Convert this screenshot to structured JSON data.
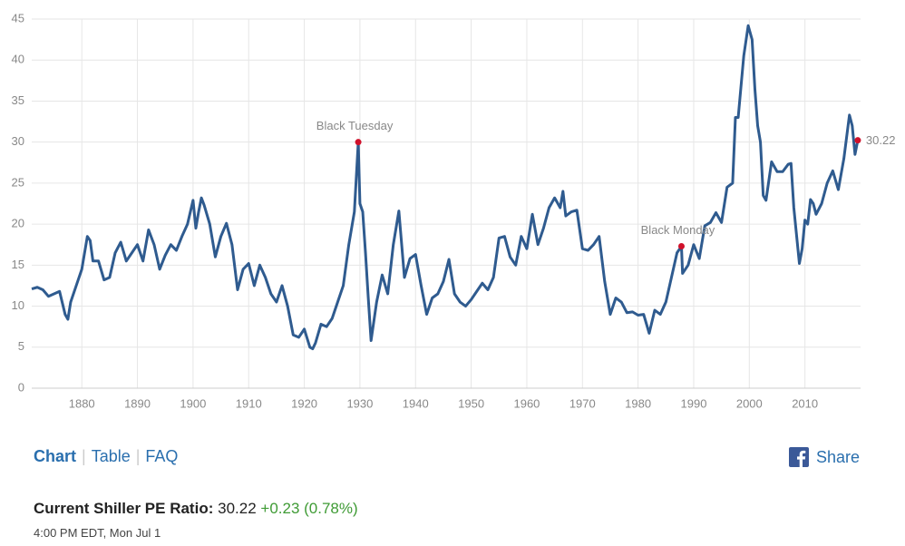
{
  "chart_data": {
    "type": "line",
    "x": [
      1871,
      1872,
      1873,
      1874,
      1875,
      1876,
      1877,
      1877.5,
      1878,
      1879,
      1880,
      1881,
      1881.5,
      1882,
      1883,
      1884,
      1885,
      1886,
      1887,
      1888,
      1889,
      1890,
      1891,
      1892,
      1893,
      1894,
      1895,
      1896,
      1897,
      1898,
      1899,
      1900,
      1900.5,
      1901,
      1901.5,
      1902,
      1903,
      1904,
      1905,
      1906,
      1907,
      1908,
      1909,
      1910,
      1911,
      1912,
      1913,
      1914,
      1915,
      1916,
      1917,
      1918,
      1919,
      1920,
      1921,
      1921.5,
      1922,
      1923,
      1924,
      1925,
      1926,
      1927,
      1928,
      1929,
      1929.7,
      1930,
      1930.5,
      1931,
      1931.5,
      1932,
      1933,
      1934,
      1935,
      1936,
      1937,
      1938,
      1939,
      1940,
      1941,
      1942,
      1943,
      1944,
      1945,
      1946,
      1947,
      1948,
      1949,
      1950,
      1951,
      1952,
      1953,
      1954,
      1955,
      1956,
      1957,
      1958,
      1959,
      1960,
      1961,
      1962,
      1963,
      1964,
      1965,
      1966,
      1966.5,
      1967,
      1968,
      1969,
      1970,
      1971,
      1972,
      1973,
      1974,
      1975,
      1976,
      1977,
      1978,
      1979,
      1980,
      1981,
      1982,
      1983,
      1984,
      1985,
      1986,
      1987,
      1987.8,
      1988,
      1989,
      1990,
      1991,
      1992,
      1993,
      1994,
      1995,
      1996,
      1997,
      1997.5,
      1998,
      1999,
      1999.8,
      2000.5,
      2001,
      2001.5,
      2002,
      2002.5,
      2003,
      2004,
      2005,
      2006,
      2007,
      2007.5,
      2008,
      2009,
      2009.5,
      2010,
      2010.5,
      2011,
      2011.5,
      2012,
      2013,
      2014,
      2015,
      2016,
      2017,
      2018,
      2018.5,
      2019,
      2019.5
    ],
    "series": [
      {
        "color": "#2f5b8f",
        "values": [
          12.1,
          12.3,
          12.0,
          11.2,
          11.5,
          11.8,
          9.0,
          8.4,
          10.5,
          12.5,
          14.5,
          18.5,
          18.0,
          15.5,
          15.5,
          13.2,
          13.5,
          16.5,
          17.8,
          15.5,
          16.5,
          17.5,
          15.5,
          19.3,
          17.5,
          14.5,
          16.2,
          17.5,
          16.8,
          18.5,
          20.0,
          22.9,
          19.5,
          21.5,
          23.2,
          22.3,
          20.0,
          16.0,
          18.5,
          20.1,
          17.5,
          12.0,
          14.5,
          15.2,
          12.5,
          15.0,
          13.5,
          11.5,
          10.5,
          12.5,
          10.0,
          6.5,
          6.2,
          7.2,
          5.0,
          4.8,
          5.5,
          7.8,
          7.5,
          8.5,
          10.5,
          12.5,
          17.5,
          21.5,
          30.0,
          22.5,
          21.5,
          16.5,
          11.0,
          5.8,
          10.5,
          13.8,
          11.5,
          17.5,
          21.6,
          13.5,
          15.8,
          16.3,
          12.5,
          9.0,
          11.0,
          11.5,
          13.0,
          15.7,
          11.5,
          10.5,
          10.0,
          10.8,
          11.8,
          12.8,
          12.0,
          13.5,
          18.3,
          18.5,
          16.0,
          15.0,
          18.5,
          17.0,
          21.2,
          17.5,
          19.5,
          22.0,
          23.2,
          22.0,
          24.0,
          21.0,
          21.5,
          21.7,
          17.0,
          16.8,
          17.5,
          18.5,
          13.0,
          9.0,
          11.0,
          10.5,
          9.2,
          9.3,
          8.9,
          9.0,
          6.7,
          9.5,
          9.0,
          10.5,
          13.5,
          16.5,
          17.3,
          14.0,
          15.0,
          17.5,
          15.8,
          19.8,
          20.2,
          21.4,
          20.2,
          24.5,
          25.0,
          33.0,
          33.0,
          40.5,
          44.2,
          42.5,
          36.5,
          32.0,
          30.0,
          23.5,
          22.9,
          27.6,
          26.4,
          26.4,
          27.3,
          27.4,
          22.0,
          15.2,
          17.0,
          20.5,
          20.0,
          23.0,
          22.5,
          21.2,
          22.5,
          25.0,
          26.5,
          24.2,
          28.0,
          33.3,
          32.0,
          28.5,
          30.22
        ]
      }
    ],
    "xlim": [
      1871,
      2020
    ],
    "ylim": [
      0,
      45
    ],
    "xticks": [
      1880,
      1890,
      1900,
      1910,
      1920,
      1930,
      1940,
      1950,
      1960,
      1970,
      1980,
      1990,
      2000,
      2010
    ],
    "yticks": [
      0,
      5,
      10,
      15,
      20,
      25,
      30,
      35,
      40,
      45
    ],
    "grid": true,
    "marker_color": "#d0112b",
    "annotations": [
      {
        "text": "Black Tuesday",
        "x": 1929.7,
        "y": 30.0
      },
      {
        "text": "Black Monday",
        "x": 1987.8,
        "y": 17.3
      },
      {
        "text": "30.22",
        "x": 2019.5,
        "y": 30.22
      }
    ]
  },
  "page": {
    "tabs": [
      "Chart",
      "Table",
      "FAQ"
    ],
    "share": "Share",
    "current_label": "Current Shiller PE Ratio:",
    "current_value": "30.22",
    "change": "+0.23 (0.78%)",
    "timestamp": "4:00 PM EDT, Mon Jul 1"
  }
}
